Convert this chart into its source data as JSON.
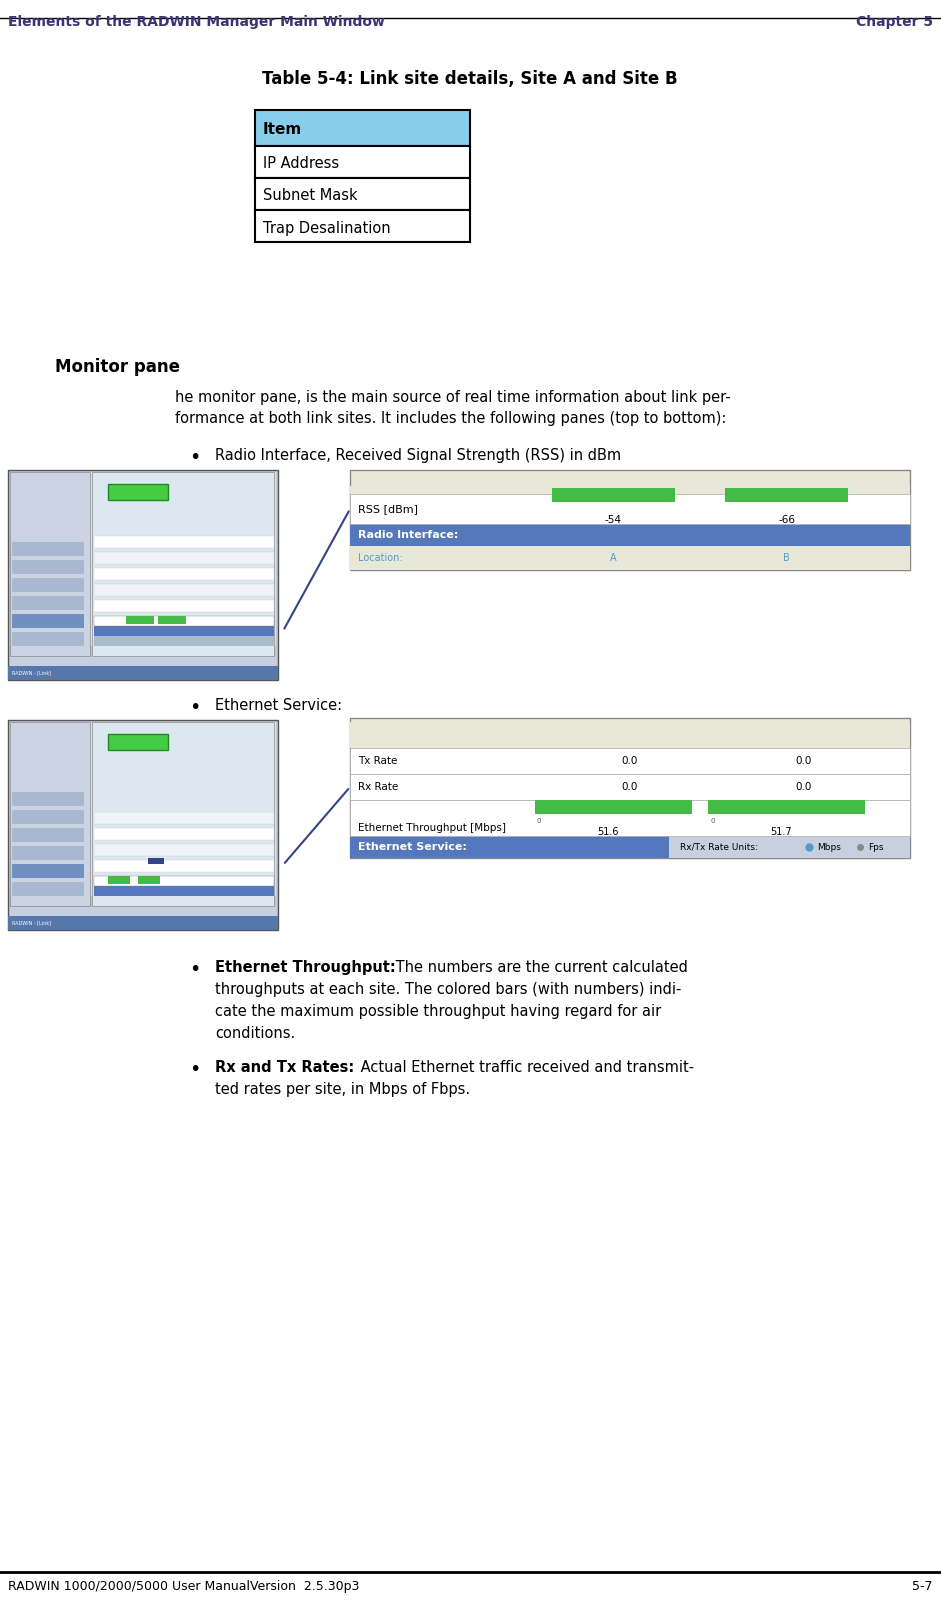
{
  "page_title_left": "Elements of the RADWIN Manager Main Window",
  "page_title_right": "Chapter 5",
  "title_color": "#3b3472",
  "table_title": "Table 5-4: Link site details, Site A and Site B",
  "table_header": "Item",
  "table_rows": [
    "IP Address",
    "Subnet Mask",
    "Trap Desalination"
  ],
  "table_header_bg": "#87ceeb",
  "section_title": "Monitor pane",
  "bullet1": "Radio Interface, Received Signal Strength (RSS) in dBm",
  "bullet2": "Ethernet Service:",
  "footer_left": "RADWIN 1000/2000/5000 User ManualVersion  2.5.30p3",
  "footer_right": "5-7",
  "bg_color": "#ffffff",
  "text_color": "#000000",
  "panel_bg": "#e8e8d8",
  "panel_header_blue": "#5577bb",
  "panel_subheader_teal": "#5599cc",
  "green_bar": "#44bb44",
  "arrow_color": "#334488"
}
